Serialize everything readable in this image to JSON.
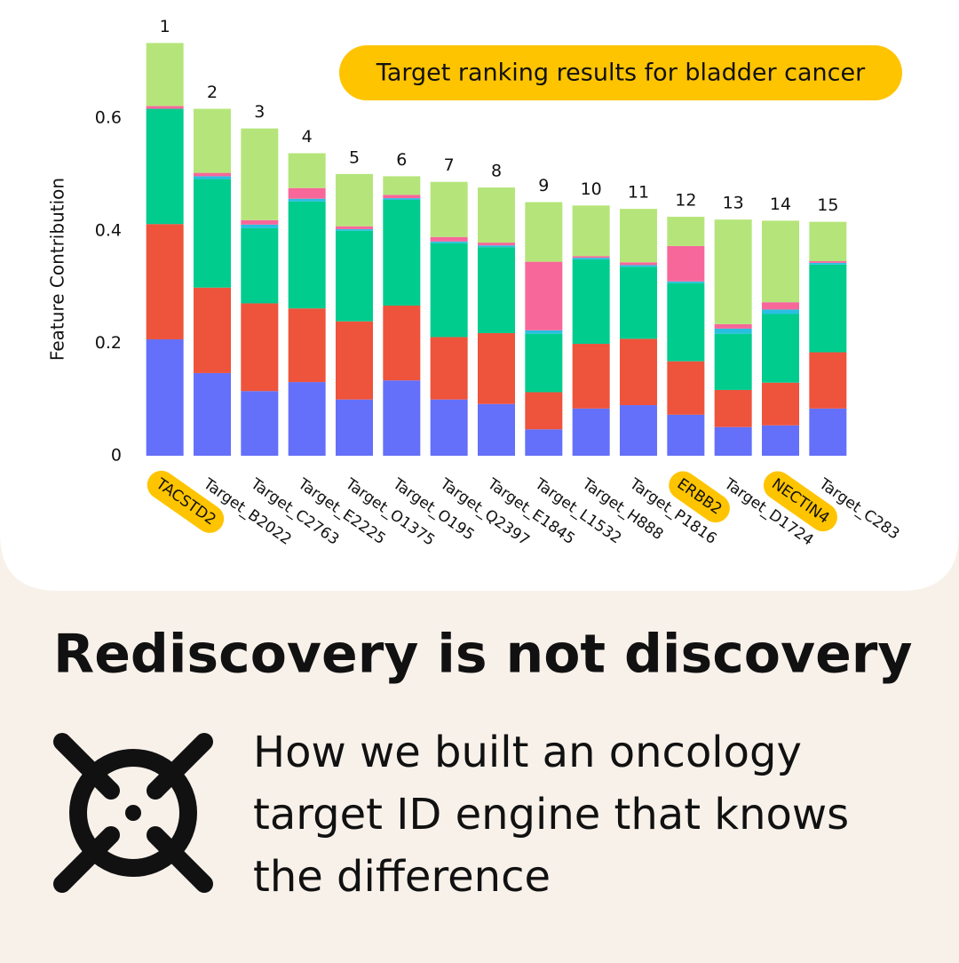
{
  "chart_data": {
    "type": "stacked_bar",
    "annotation": "Target ranking results for bladder cancer",
    "y_label": "Feature Contribution",
    "categories": [
      "TACSTD2",
      "Target_B2022",
      "Target_C2763",
      "Target_E2225",
      "Target_O1375",
      "Target_O195",
      "Target_Q2397",
      "Target_E1845",
      "Target_L1532",
      "Target_H888",
      "Target_P1816",
      "ERBB2",
      "Target_D1724",
      "NECTIN4",
      "Target_C283"
    ],
    "highlight": [
      true,
      false,
      false,
      false,
      false,
      false,
      false,
      false,
      false,
      false,
      false,
      true,
      false,
      true,
      false
    ],
    "highlight_color": "#ffc400",
    "ranks": [
      1,
      2,
      3,
      4,
      5,
      6,
      7,
      8,
      9,
      10,
      11,
      12,
      13,
      14,
      15
    ],
    "series": [
      {
        "color": "#6470f9",
        "values": [
          0.207,
          0.147,
          0.115,
          0.131,
          0.1,
          0.134,
          0.1,
          0.092,
          0.047,
          0.084,
          0.09,
          0.073,
          0.051,
          0.054,
          0.084
        ]
      },
      {
        "color": "#ee533c",
        "values": [
          0.205,
          0.152,
          0.156,
          0.131,
          0.139,
          0.133,
          0.111,
          0.126,
          0.066,
          0.115,
          0.118,
          0.095,
          0.066,
          0.076,
          0.1
        ]
      },
      {
        "color": "#00cc8e",
        "values": [
          0.205,
          0.193,
          0.134,
          0.19,
          0.161,
          0.188,
          0.167,
          0.153,
          0.104,
          0.15,
          0.128,
          0.139,
          0.1,
          0.122,
          0.156
        ]
      },
      {
        "color": "#27c0e0",
        "values": [
          0.0,
          0.005,
          0.006,
          0.005,
          0.003,
          0.003,
          0.003,
          0.003,
          0.006,
          0.003,
          0.003,
          0.003,
          0.009,
          0.008,
          0.003
        ]
      },
      {
        "color": "#f7679a",
        "values": [
          0.005,
          0.006,
          0.008,
          0.019,
          0.005,
          0.006,
          0.008,
          0.005,
          0.122,
          0.003,
          0.005,
          0.063,
          0.008,
          0.013,
          0.003
        ]
      },
      {
        "color": "#b5e57a",
        "values": [
          0.112,
          0.114,
          0.163,
          0.062,
          0.093,
          0.033,
          0.098,
          0.098,
          0.106,
          0.09,
          0.095,
          0.052,
          0.186,
          0.145,
          0.07
        ]
      }
    ],
    "ylim": [
      0,
      0.75
    ],
    "yticks": [
      0,
      0.2,
      0.4,
      0.6
    ],
    "grid": false
  },
  "headline": "Rediscovery is not discovery",
  "subheadline": [
    "How we built an oncology",
    "target ID engine that knows",
    "the difference"
  ]
}
